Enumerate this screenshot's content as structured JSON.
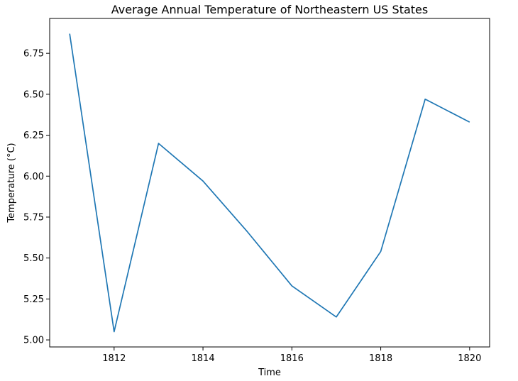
{
  "chart_data": {
    "type": "line",
    "title": "Average Annual Temperature of Northeastern US States",
    "xlabel": "Time",
    "ylabel": "Temperature (°C)",
    "x": [
      1811,
      1812,
      1813,
      1814,
      1815,
      1816,
      1817,
      1818,
      1819,
      1820
    ],
    "series": [
      {
        "values": [
          6.87,
          5.05,
          6.2,
          5.97,
          5.66,
          5.33,
          5.14,
          5.54,
          6.47,
          6.33
        ]
      }
    ],
    "xticks": [
      1812,
      1814,
      1816,
      1818,
      1820
    ],
    "xtick_labels": [
      "1812",
      "1814",
      "1816",
      "1818",
      "1820"
    ],
    "yticks": [
      5.0,
      5.25,
      5.5,
      5.75,
      6.0,
      6.25,
      6.5,
      6.75
    ],
    "ytick_labels": [
      "5.00",
      "5.25",
      "5.50",
      "5.75",
      "6.00",
      "6.25",
      "6.50",
      "6.75"
    ],
    "xlim": [
      1810.55,
      1820.45
    ],
    "ylim": [
      4.957,
      6.963
    ],
    "grid": false,
    "line_color": "#1f77b4"
  }
}
